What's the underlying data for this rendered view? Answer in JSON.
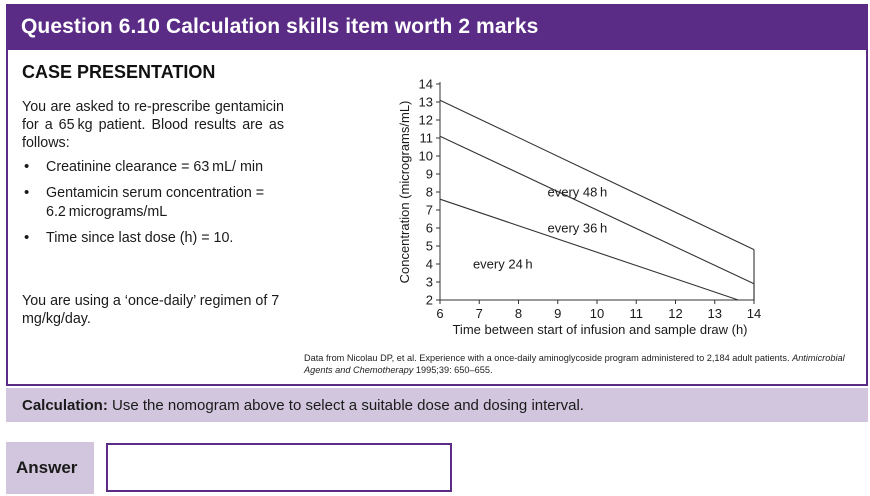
{
  "header": {
    "title": "Question 6.10 Calculation skills item worth 2 marks"
  },
  "case": {
    "title": "CASE PRESENTATION",
    "intro": "You are asked to re-prescribe gentamicin for a 65 kg patient. Blood results are as follows:",
    "bullets": [
      "Creatinine clearance = 63 mL/ min",
      "Gentamicin serum concentration = 6.2 micrograms/mL",
      "Time since last dose (h) = 10."
    ],
    "regimen": "You are using a ‘once-daily’ regimen of 7 mg/kg/day."
  },
  "chart_data": {
    "type": "line",
    "xlabel": "Time between start of infusion and sample draw (h)",
    "ylabel": "Concentration (micrograms/mL)",
    "xlim": [
      6,
      14
    ],
    "ylim": [
      2,
      14
    ],
    "xticks": [
      6,
      7,
      8,
      9,
      10,
      11,
      12,
      13,
      14
    ],
    "yticks": [
      2,
      3,
      4,
      5,
      6,
      7,
      8,
      9,
      10,
      11,
      12,
      13,
      14
    ],
    "grid": false,
    "series": [
      {
        "label": "every 24 h",
        "x": [
          6,
          13.6
        ],
        "y": [
          7.6,
          2
        ],
        "label_at": [
          7.6,
          4.0
        ]
      },
      {
        "label": "every 36 h",
        "x": [
          6,
          14
        ],
        "y": [
          11.1,
          2.9
        ],
        "label_at": [
          9.5,
          6.0
        ]
      },
      {
        "label": "every 48 h",
        "x": [
          6,
          14
        ],
        "y": [
          13.1,
          4.8
        ],
        "label_at": [
          9.5,
          8.0
        ]
      }
    ]
  },
  "source": {
    "text": "Data from Nicolau DP, et al. Experience with a once-daily aminoglycoside program administered to 2,184 adult patients.",
    "journal": "Antimicrobial Agents and Chemotherapy",
    "citation": " 1995;39: 650–655."
  },
  "calculation": {
    "label": "Calculation:",
    "text": " Use the nomogram above to select a suitable dose and dosing interval."
  },
  "answer": {
    "label": "Answer",
    "value": ""
  },
  "colors": {
    "accent": "#5b2c86",
    "light_accent": "#d1c6dd"
  }
}
